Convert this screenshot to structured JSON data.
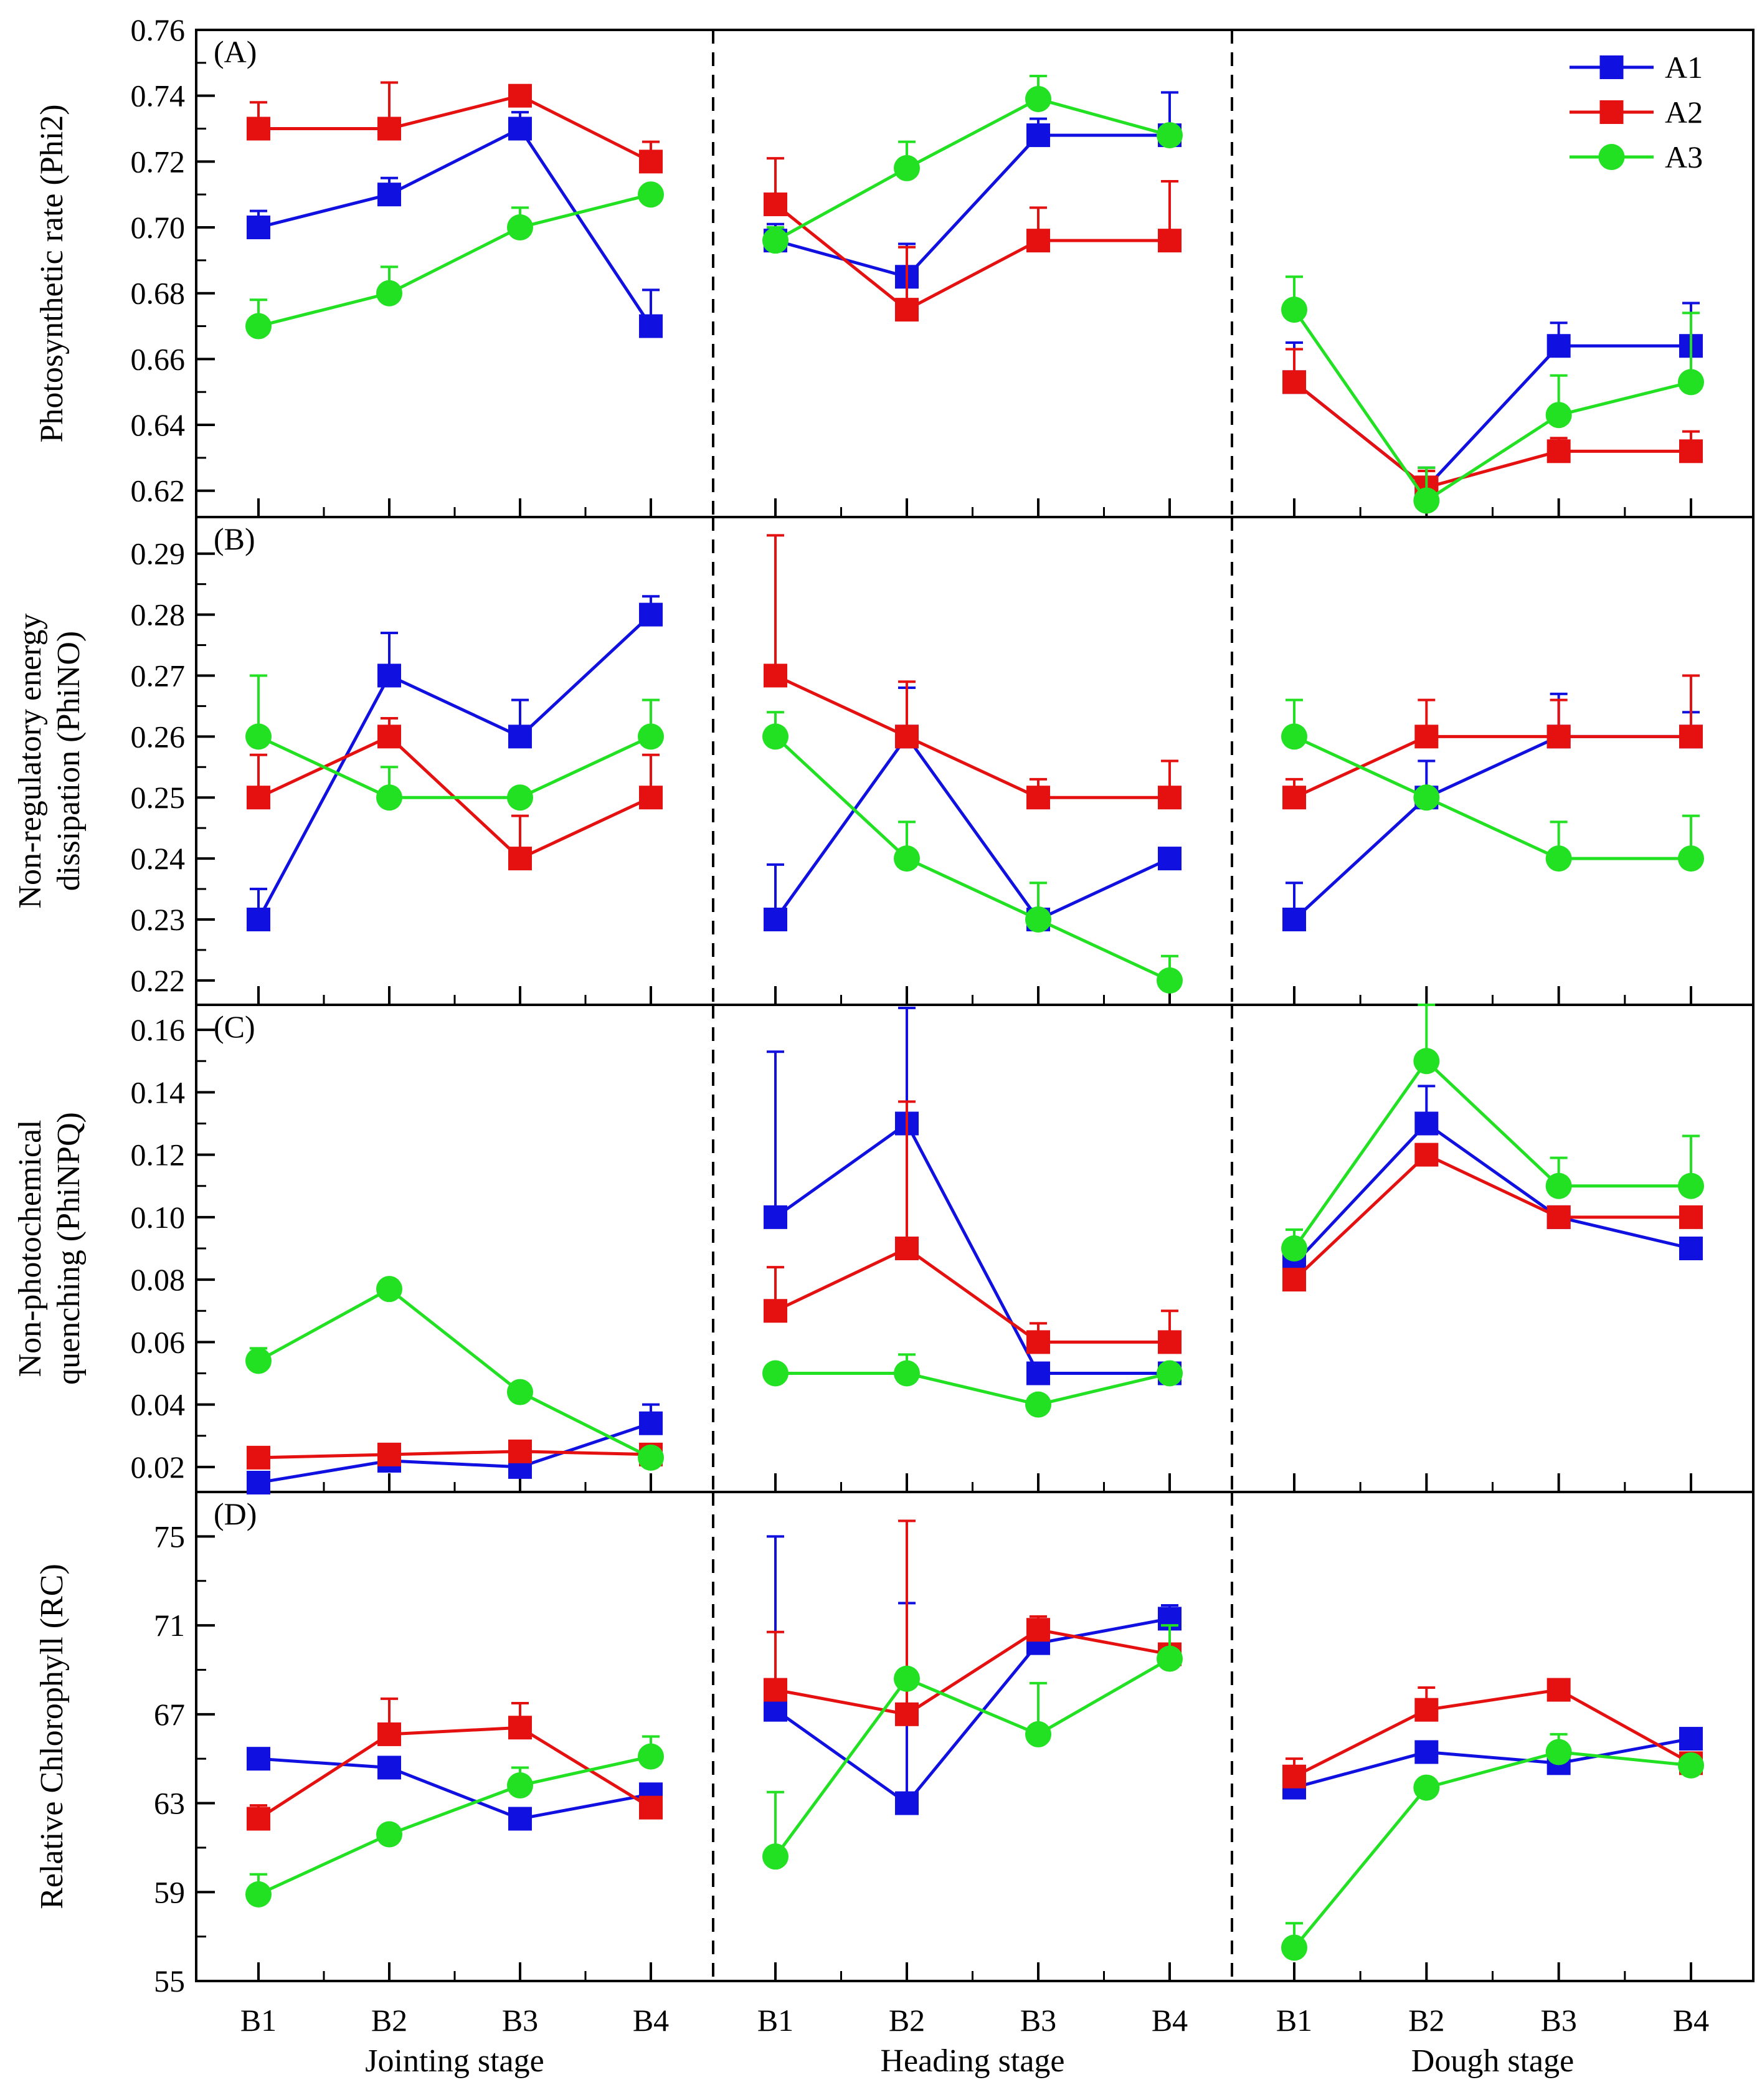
{
  "chart_data": {
    "type": "line",
    "colors": {
      "A1": "#1010e0",
      "A2": "#e51010",
      "A3": "#22e022"
    },
    "legend": [
      "A1",
      "A2",
      "A3"
    ],
    "legend_position": "top-right",
    "categories": [
      "B1",
      "B2",
      "B3",
      "B4"
    ],
    "stages": [
      "Jointing stage",
      "Heading stage",
      "Dough stage"
    ],
    "panels": [
      {
        "label": "(A)",
        "ylabel_lines": [
          "Photosynthetic rate (Phi2)"
        ],
        "ylim": [
          0.612,
          0.76
        ],
        "ticks": [
          0.62,
          0.64,
          0.66,
          0.68,
          0.7,
          0.72,
          0.74,
          0.76
        ],
        "tick_labels": [
          "0.62",
          "0.64",
          "0.66",
          "0.68",
          "0.70",
          "0.72",
          "0.74",
          "0.76"
        ],
        "series": [
          {
            "name": "A1",
            "marker": "square",
            "values": [
              [
                0.7,
                0.71,
                0.73,
                0.67
              ],
              [
                0.696,
                0.685,
                0.728,
                0.728
              ],
              [
                0.653,
                0.621,
                0.664,
                0.664
              ]
            ],
            "errors": [
              [
                0.005,
                0.005,
                0.005,
                0.011
              ],
              [
                0.005,
                0.01,
                0.005,
                0.013
              ],
              [
                0.012,
                0.006,
                0.007,
                0.013
              ]
            ]
          },
          {
            "name": "A2",
            "marker": "square",
            "values": [
              [
                0.73,
                0.73,
                0.74,
                0.72
              ],
              [
                0.707,
                0.675,
                0.696,
                0.696
              ],
              [
                0.653,
                0.621,
                0.632,
                0.632
              ]
            ],
            "errors": [
              [
                0.008,
                0.014,
                0.003,
                0.006
              ],
              [
                0.014,
                0.019,
                0.01,
                0.018
              ],
              [
                0.01,
                0.005,
                0.004,
                0.006
              ]
            ]
          },
          {
            "name": "A3",
            "marker": "circle",
            "values": [
              [
                0.67,
                0.68,
                0.7,
                0.71
              ],
              [
                0.696,
                0.718,
                0.739,
                0.728
              ],
              [
                0.675,
                0.617,
                0.643,
                0.653
              ]
            ],
            "errors": [
              [
                0.008,
                0.008,
                0.006,
                0.0
              ],
              [
                0.004,
                0.008,
                0.007,
                0.0
              ],
              [
                0.01,
                0.01,
                0.012,
                0.021
              ]
            ]
          }
        ]
      },
      {
        "label": "(B)",
        "ylabel_lines": [
          "Non-regulatory energy",
          "dissipation (PhiNO)"
        ],
        "ylim": [
          0.216,
          0.296
        ],
        "ticks": [
          0.22,
          0.23,
          0.24,
          0.25,
          0.26,
          0.27,
          0.28,
          0.29
        ],
        "tick_labels": [
          "0.22",
          "0.23",
          "0.24",
          "0.25",
          "0.26",
          "0.27",
          "0.28",
          "0.29"
        ],
        "series": [
          {
            "name": "A1",
            "marker": "square",
            "values": [
              [
                0.23,
                0.27,
                0.26,
                0.28
              ],
              [
                0.23,
                0.26,
                0.23,
                0.24
              ],
              [
                0.23,
                0.25,
                0.26,
                0.26
              ]
            ],
            "errors": [
              [
                0.005,
                0.007,
                0.006,
                0.003
              ],
              [
                0.009,
                0.008,
                0.0,
                0.0
              ],
              [
                0.006,
                0.006,
                0.007,
                0.004
              ]
            ]
          },
          {
            "name": "A2",
            "marker": "square",
            "values": [
              [
                0.25,
                0.26,
                0.24,
                0.25
              ],
              [
                0.27,
                0.26,
                0.25,
                0.25
              ],
              [
                0.25,
                0.26,
                0.26,
                0.26
              ]
            ],
            "errors": [
              [
                0.007,
                0.003,
                0.007,
                0.007
              ],
              [
                0.023,
                0.009,
                0.003,
                0.006
              ],
              [
                0.003,
                0.006,
                0.006,
                0.01
              ]
            ]
          },
          {
            "name": "A3",
            "marker": "circle",
            "values": [
              [
                0.26,
                0.25,
                0.25,
                0.26
              ],
              [
                0.26,
                0.24,
                0.23,
                0.22
              ],
              [
                0.26,
                0.25,
                0.24,
                0.24
              ]
            ],
            "errors": [
              [
                0.01,
                0.005,
                0.0,
                0.006
              ],
              [
                0.004,
                0.006,
                0.006,
                0.004
              ],
              [
                0.006,
                0.0,
                0.006,
                0.007
              ]
            ]
          }
        ]
      },
      {
        "label": "(C)",
        "ylabel_lines": [
          "Non-photochemical",
          "quenching (PhiNPQ)"
        ],
        "ylim": [
          0.012,
          0.168
        ],
        "ticks": [
          0.02,
          0.04,
          0.06,
          0.08,
          0.1,
          0.12,
          0.14,
          0.16
        ],
        "tick_labels": [
          "0.02",
          "0.04",
          "0.06",
          "0.08",
          "0.10",
          "0.12",
          "0.14",
          "0.16"
        ],
        "series": [
          {
            "name": "A1",
            "marker": "square",
            "values": [
              [
                0.015,
                0.022,
                0.02,
                0.034
              ],
              [
                0.1,
                0.13,
                0.05,
                0.05
              ],
              [
                0.085,
                0.13,
                0.1,
                0.09
              ]
            ],
            "errors": [
              [
                0.0,
                0.0,
                0.0,
                0.006
              ],
              [
                0.053,
                0.037,
                0.0,
                0.0
              ],
              [
                0.0,
                0.012,
                0.0,
                0.0
              ]
            ]
          },
          {
            "name": "A2",
            "marker": "square",
            "values": [
              [
                0.023,
                0.024,
                0.025,
                0.024
              ],
              [
                0.07,
                0.09,
                0.06,
                0.06
              ],
              [
                0.08,
                0.12,
                0.1,
                0.1
              ]
            ],
            "errors": [
              [
                0.0,
                0.0,
                0.0,
                0.0
              ],
              [
                0.014,
                0.047,
                0.006,
                0.01
              ],
              [
                0.0,
                0.0,
                0.0,
                0.0
              ]
            ]
          },
          {
            "name": "A3",
            "marker": "circle",
            "values": [
              [
                0.054,
                0.077,
                0.044,
                0.023
              ],
              [
                0.05,
                0.05,
                0.04,
                0.05
              ],
              [
                0.09,
                0.15,
                0.11,
                0.11
              ]
            ],
            "errors": [
              [
                0.004,
                0.0,
                0.0,
                0.0
              ],
              [
                0.0,
                0.006,
                0.0,
                0.0
              ],
              [
                0.006,
                0.018,
                0.009,
                0.016
              ]
            ]
          }
        ]
      },
      {
        "label": "(D)",
        "ylabel_lines": [
          "Relative Chlorophyll (RC)"
        ],
        "ylim": [
          55,
          77
        ],
        "ticks": [
          55,
          59,
          63,
          67,
          71,
          75
        ],
        "tick_labels": [
          "55",
          "59",
          "63",
          "67",
          "71",
          "75"
        ],
        "series": [
          {
            "name": "A1",
            "marker": "square",
            "values": [
              [
                65.0,
                64.6,
                62.3,
                63.4
              ],
              [
                67.2,
                63.0,
                70.2,
                71.3
              ],
              [
                63.7,
                65.3,
                64.8,
                65.9
              ]
            ],
            "errors": [
              [
                0.0,
                0.0,
                0.0,
                0.0
              ],
              [
                7.8,
                9.0,
                0.0,
                0.6
              ],
              [
                0.0,
                0.0,
                0.0,
                0.0
              ]
            ]
          },
          {
            "name": "A2",
            "marker": "square",
            "values": [
              [
                62.3,
                66.1,
                66.4,
                62.8
              ],
              [
                68.1,
                67.0,
                70.8,
                69.7
              ],
              [
                64.2,
                67.2,
                68.1,
                64.8
              ]
            ],
            "errors": [
              [
                0.6,
                1.6,
                1.1,
                0.0
              ],
              [
                2.6,
                8.7,
                0.6,
                0.0
              ],
              [
                0.8,
                1.0,
                0.4,
                0.0
              ]
            ]
          },
          {
            "name": "A3",
            "marker": "circle",
            "values": [
              [
                58.9,
                61.6,
                63.8,
                65.1
              ],
              [
                60.6,
                68.6,
                66.1,
                69.5
              ],
              [
                56.5,
                63.7,
                65.3,
                64.7
              ]
            ],
            "errors": [
              [
                0.9,
                0.0,
                0.8,
                0.9
              ],
              [
                2.9,
                0.0,
                2.3,
                1.5
              ],
              [
                1.1,
                0.0,
                0.8,
                0.0
              ]
            ]
          }
        ]
      }
    ]
  }
}
